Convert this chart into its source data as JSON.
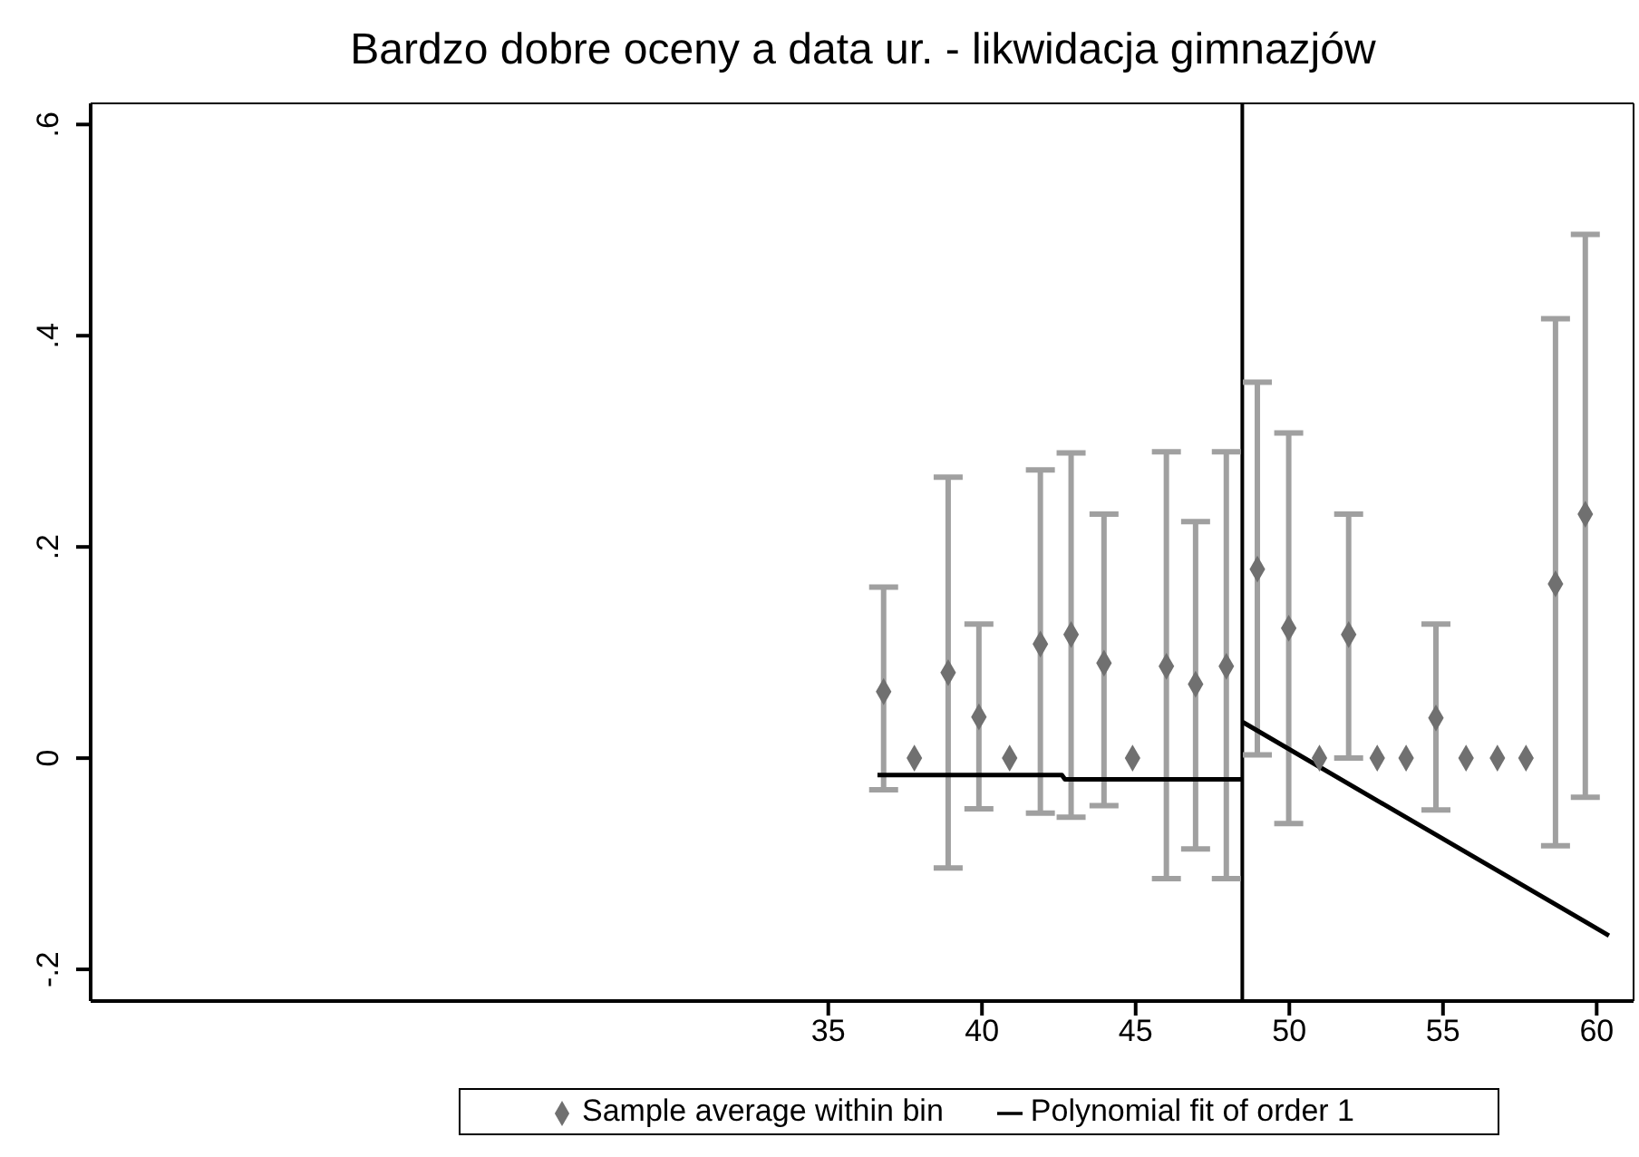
{
  "chart_data": {
    "type": "scatter",
    "title": "Bardzo dobre oceny a data ur. - likwidacja gimnazjów",
    "xlim": [
      11,
      61.2
    ],
    "xticks": [
      35,
      40,
      45,
      50,
      55,
      60
    ],
    "ylim": [
      -0.23,
      0.62
    ],
    "yticks": [
      {
        "value": 0.6,
        "label": ".6"
      },
      {
        "value": 0.4,
        "label": ".4"
      },
      {
        "value": 0.2,
        "label": ".2"
      },
      {
        "value": 0,
        "label": "0"
      },
      {
        "value": -0.2,
        "label": "-.2"
      }
    ],
    "legend": "bottom",
    "marker": "diamond",
    "ref_lines": [
      {
        "axis": "x",
        "value": 48.47,
        "color": "#000000"
      }
    ],
    "series": [
      {
        "name": "Sample average within bin",
        "color": "#707070",
        "x": [
          36.8,
          37.8,
          38.9,
          39.9,
          40.9,
          41.9,
          42.9,
          43.97,
          44.9,
          46.0,
          46.95,
          47.95,
          48.96,
          49.98,
          50.98,
          51.93,
          52.86,
          53.8,
          54.77,
          55.75,
          56.77,
          57.7,
          58.66,
          59.63
        ],
        "values": [
          0.063,
          0,
          0.081,
          0.039,
          0,
          0.108,
          0.117,
          0.09,
          0,
          0.087,
          0.07,
          0.087,
          0.179,
          0.123,
          0,
          0.117,
          0,
          0,
          0.038,
          0,
          0,
          0,
          0.165,
          0.231
        ],
        "errors": [
          [
            -0.03,
            0.162
          ],
          null,
          [
            -0.104,
            0.266
          ],
          [
            -0.048,
            0.127
          ],
          null,
          [
            -0.052,
            0.273
          ],
          [
            -0.056,
            0.289
          ],
          [
            -0.045,
            0.231
          ],
          null,
          [
            -0.114,
            0.29
          ],
          [
            -0.086,
            0.224
          ],
          [
            -0.114,
            0.29
          ],
          [
            0.003,
            0.356
          ],
          [
            -0.062,
            0.308
          ],
          null,
          [
            0,
            0.231
          ],
          null,
          null,
          [
            -0.049,
            0.127
          ],
          null,
          null,
          null,
          [
            -0.083,
            0.416
          ],
          [
            -0.037,
            0.496
          ]
        ]
      },
      {
        "name": "Polynomial fit of order 1",
        "type": "line",
        "color": "#000000",
        "marker": "none",
        "x": [
          36.6,
          42.6,
          42.7,
          48.47,
          48.48,
          48.49,
          60.4
        ],
        "values": [
          -0.016,
          -0.016,
          -0.02,
          -0.02,
          null,
          0.034,
          -0.168
        ]
      }
    ]
  }
}
